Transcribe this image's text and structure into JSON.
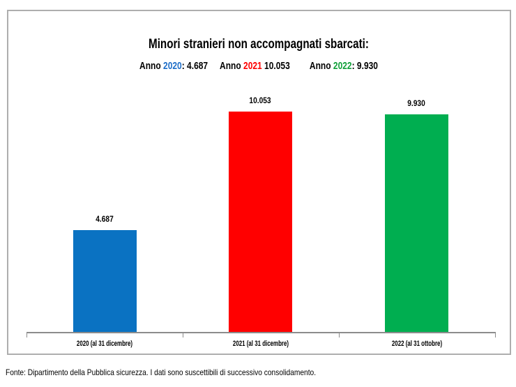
{
  "chart": {
    "title": "Minori stranieri non accompagnati sbarcati:",
    "subtitle_items": [
      {
        "prefix": "Anno ",
        "year": "2020",
        "suffix": ": 4.687",
        "year_color": "#1e6ec8"
      },
      {
        "prefix": "Anno ",
        "year": "2021",
        "suffix": " 10.053",
        "year_color": "#ff0000"
      },
      {
        "prefix": "Anno ",
        "year": "2022",
        "suffix": ": 9.930",
        "year_color": "#11a03a"
      }
    ]
  },
  "chart_data": {
    "type": "bar",
    "title": "Minori stranieri non accompagnati sbarcati:",
    "subtitle": "Anno 2020: 4.687   Anno 2021 10.053     Anno 2022: 9.930",
    "categories": [
      "2020 (al 31 dicembre)",
      "2021 (al 31 dicembre)",
      "2022 (al 31 ottobre)"
    ],
    "values": [
      4687,
      10053,
      9930
    ],
    "value_labels": [
      "4.687",
      "10.053",
      "9.930"
    ],
    "bar_colors": [
      "#0a72c2",
      "#ff0000",
      "#00ae50"
    ],
    "ylim": [
      0,
      10500
    ],
    "grid": false,
    "xlabel": "",
    "ylabel": "",
    "legend_position": "none"
  },
  "footer": {
    "source_note": "Fonte: Dipartimento della Pubblica sicurezza. I dati sono suscettibili di successivo consolidamento."
  },
  "colors": {
    "axis": "#8c8c8c",
    "chart_border": "#aeaeae",
    "text": "#000000"
  }
}
